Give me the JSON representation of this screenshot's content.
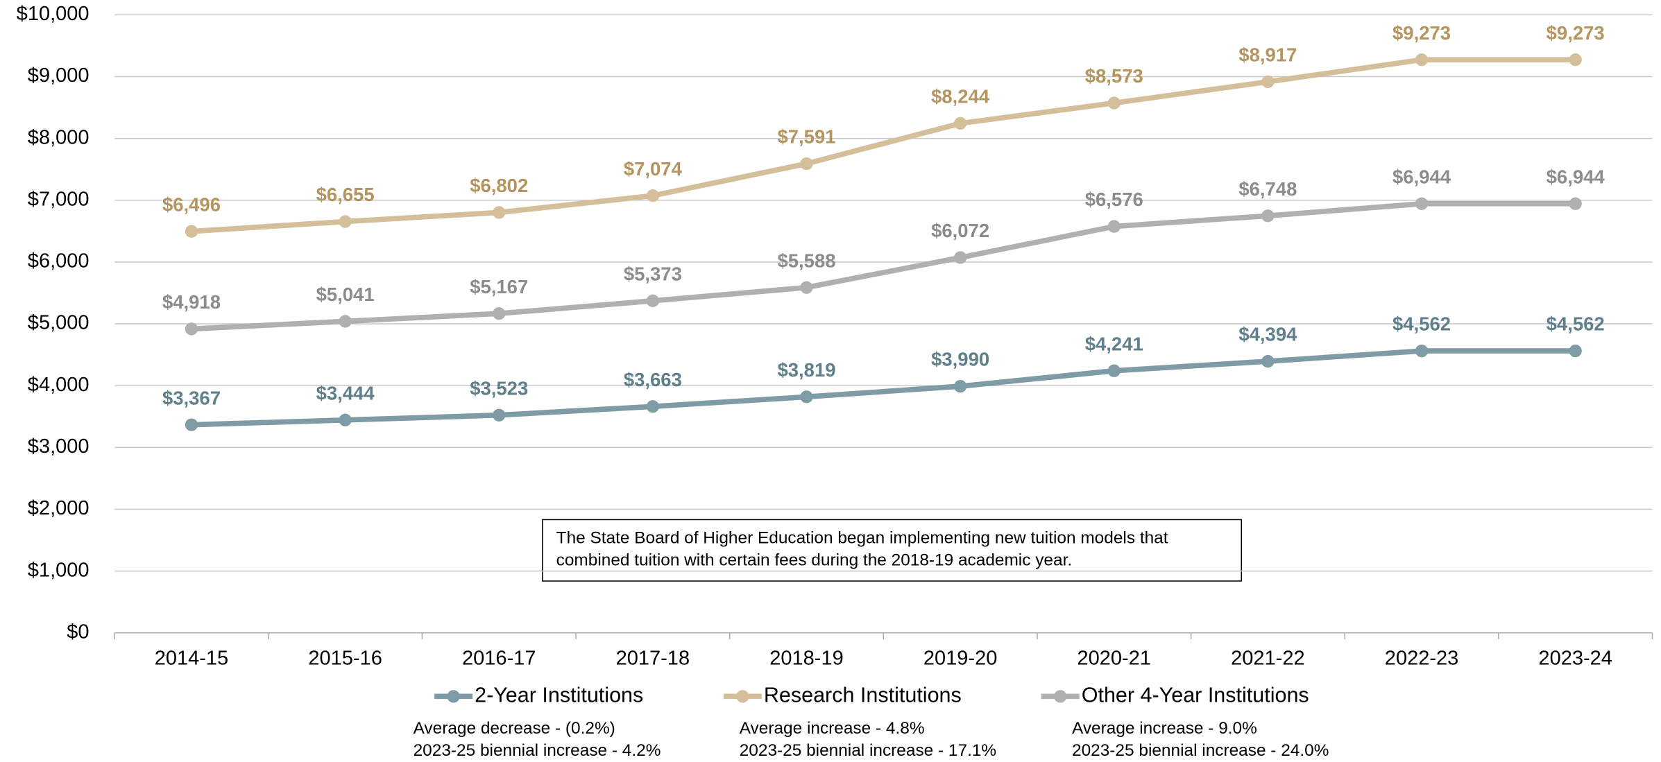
{
  "chart_data": {
    "type": "line",
    "categories": [
      "2014-15",
      "2015-16",
      "2016-17",
      "2017-18",
      "2018-19",
      "2019-20",
      "2020-21",
      "2021-22",
      "2022-23",
      "2023-24"
    ],
    "series": [
      {
        "name": "2-Year Institutions",
        "color": "#7f9ba5",
        "label_color": "#5f7f8c",
        "values": [
          3367,
          3444,
          3523,
          3663,
          3819,
          3990,
          4241,
          4394,
          4562,
          4562
        ],
        "value_labels": [
          "$3,367",
          "$3,444",
          "$3,523",
          "$3,663",
          "$3,819",
          "$3,990",
          "$4,241",
          "$4,394",
          "$4,562",
          "$4,562"
        ],
        "notes": [
          "Average decrease - (0.2%)",
          "2023-25 biennial increase - 4.2%"
        ]
      },
      {
        "name": "Research Institutions",
        "color": "#d4bf9a",
        "label_color": "#b5955f",
        "values": [
          6496,
          6655,
          6802,
          7074,
          7591,
          8244,
          8573,
          8917,
          9273,
          9273
        ],
        "value_labels": [
          "$6,496",
          "$6,655",
          "$6,802",
          "$7,074",
          "$7,591",
          "$8,244",
          "$8,573",
          "$8,917",
          "$9,273",
          "$9,273"
        ],
        "notes": [
          "Average increase - 4.8%",
          "2023-25 biennial increase - 17.1%"
        ]
      },
      {
        "name": "Other 4-Year Institutions",
        "color": "#b0b0b0",
        "label_color": "#8c8c8c",
        "values": [
          4918,
          5041,
          5167,
          5373,
          5588,
          6072,
          6576,
          6748,
          6944,
          6944
        ],
        "value_labels": [
          "$4,918",
          "$5,041",
          "$5,167",
          "$5,373",
          "$5,588",
          "$6,072",
          "$6,576",
          "$6,748",
          "$6,944",
          "$6,944"
        ],
        "notes": [
          "Average increase - 9.0%",
          "2023-25 biennial increase - 24.0%"
        ]
      }
    ],
    "ylim": [
      0,
      10000
    ],
    "yticks": [
      {
        "value": 0,
        "label": "$0"
      },
      {
        "value": 1000,
        "label": "$1,000"
      },
      {
        "value": 2000,
        "label": "$2,000"
      },
      {
        "value": 3000,
        "label": "$3,000"
      },
      {
        "value": 4000,
        "label": "$4,000"
      },
      {
        "value": 5000,
        "label": "$5,000"
      },
      {
        "value": 6000,
        "label": "$6,000"
      },
      {
        "value": 7000,
        "label": "$7,000"
      },
      {
        "value": 8000,
        "label": "$8,000"
      },
      {
        "value": 9000,
        "label": "$9,000"
      },
      {
        "value": 10000,
        "label": "$10,000"
      }
    ],
    "grid": true,
    "annotation": [
      "The State Board of Higher Education began implementing new tuition models that",
      "combined tuition with certain fees during the 2018-19 academic year."
    ]
  }
}
